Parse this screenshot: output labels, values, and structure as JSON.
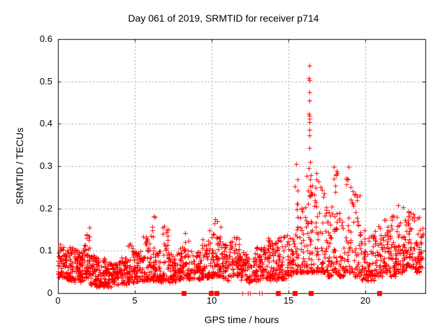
{
  "chart_data": {
    "type": "scatter",
    "title": "Day 061 of 2019, SRMTID for receiver p714",
    "xlabel": "GPS time / hours",
    "ylabel": "SRMTID / TECUs",
    "xlim": [
      0,
      23.9
    ],
    "ylim": [
      0,
      0.6
    ],
    "xticks": [
      0,
      5,
      10,
      15,
      20
    ],
    "xtick_labels": [
      "0",
      "5",
      "10",
      "15",
      "20"
    ],
    "yticks": [
      0,
      0.1,
      0.2,
      0.3,
      0.4,
      0.5,
      0.6
    ],
    "ytick_labels": [
      "0",
      "0.1",
      "0.2",
      "0.3",
      "0.4",
      "0.5",
      "0.6"
    ],
    "grid": true,
    "legend": "none",
    "marker": {
      "shape": "plus",
      "size": 7,
      "color": "#ff0000"
    },
    "colors": {
      "points": "#ff0000",
      "grid": "#9e9e9e",
      "axis": "#000000",
      "background": "#ffffff",
      "text": "#000000"
    },
    "seed": 20190061,
    "series": [
      {
        "name": "srmtid",
        "marker": "plus",
        "band_bins_format": [
          "t_start_hours",
          "t_end_hours",
          "y_min_TECUs",
          "y_max_TECUs",
          "point_count"
        ],
        "band_bins": [
          [
            0.0,
            0.5,
            0.035,
            0.115,
            55
          ],
          [
            0.5,
            1.0,
            0.03,
            0.11,
            55
          ],
          [
            1.0,
            1.5,
            0.025,
            0.105,
            50
          ],
          [
            1.5,
            1.8,
            0.03,
            0.12,
            30
          ],
          [
            1.8,
            2.05,
            0.035,
            0.16,
            35
          ],
          [
            2.05,
            2.5,
            0.02,
            0.09,
            45
          ],
          [
            2.5,
            3.0,
            0.015,
            0.085,
            50
          ],
          [
            3.0,
            3.5,
            0.015,
            0.08,
            50
          ],
          [
            3.5,
            4.0,
            0.02,
            0.075,
            50
          ],
          [
            4.0,
            4.5,
            0.02,
            0.085,
            50
          ],
          [
            4.5,
            5.0,
            0.025,
            0.12,
            50
          ],
          [
            5.0,
            5.5,
            0.025,
            0.1,
            50
          ],
          [
            5.5,
            6.0,
            0.03,
            0.135,
            45
          ],
          [
            6.0,
            6.3,
            0.03,
            0.185,
            30
          ],
          [
            6.3,
            6.8,
            0.025,
            0.1,
            45
          ],
          [
            6.8,
            7.2,
            0.03,
            0.16,
            35
          ],
          [
            7.2,
            7.8,
            0.025,
            0.095,
            50
          ],
          [
            7.8,
            8.2,
            0.03,
            0.11,
            40
          ],
          [
            8.2,
            8.5,
            0.035,
            0.155,
            30
          ],
          [
            8.5,
            9.3,
            0.03,
            0.1,
            60
          ],
          [
            9.3,
            9.8,
            0.035,
            0.13,
            45
          ],
          [
            9.8,
            10.1,
            0.04,
            0.155,
            30
          ],
          [
            10.1,
            10.7,
            0.04,
            0.175,
            55
          ],
          [
            10.7,
            11.2,
            0.03,
            0.12,
            45
          ],
          [
            11.2,
            11.8,
            0.04,
            0.135,
            55
          ],
          [
            11.8,
            12.3,
            0.03,
            0.1,
            45
          ],
          [
            12.3,
            12.9,
            0.025,
            0.095,
            50
          ],
          [
            12.9,
            13.4,
            0.03,
            0.11,
            50
          ],
          [
            13.4,
            13.8,
            0.035,
            0.13,
            45
          ],
          [
            13.8,
            14.3,
            0.03,
            0.12,
            45
          ],
          [
            14.3,
            14.9,
            0.035,
            0.145,
            50
          ],
          [
            14.9,
            15.35,
            0.04,
            0.13,
            45
          ],
          [
            15.35,
            15.75,
            0.05,
            0.31,
            40
          ],
          [
            15.75,
            16.15,
            0.05,
            0.24,
            35
          ],
          [
            16.15,
            16.55,
            0.05,
            0.31,
            45
          ],
          [
            16.55,
            17.0,
            0.05,
            0.285,
            40
          ],
          [
            17.0,
            17.5,
            0.05,
            0.3,
            40
          ],
          [
            17.5,
            17.9,
            0.04,
            0.22,
            35
          ],
          [
            17.9,
            18.25,
            0.05,
            0.31,
            35
          ],
          [
            18.25,
            18.65,
            0.04,
            0.2,
            35
          ],
          [
            18.65,
            19.3,
            0.05,
            0.31,
            45
          ],
          [
            19.3,
            19.7,
            0.04,
            0.24,
            35
          ],
          [
            19.7,
            20.1,
            0.03,
            0.15,
            35
          ],
          [
            20.1,
            20.6,
            0.03,
            0.14,
            45
          ],
          [
            20.6,
            21.1,
            0.04,
            0.16,
            45
          ],
          [
            21.1,
            21.6,
            0.05,
            0.175,
            45
          ],
          [
            21.6,
            22.1,
            0.04,
            0.19,
            48
          ],
          [
            22.1,
            22.6,
            0.05,
            0.215,
            50
          ],
          [
            22.6,
            23.1,
            0.06,
            0.2,
            50
          ],
          [
            23.1,
            23.55,
            0.05,
            0.19,
            42
          ],
          [
            23.55,
            23.78,
            0.06,
            0.155,
            18
          ]
        ],
        "spike_points": [
          [
            16.35,
            0.538
          ],
          [
            16.33,
            0.508
          ],
          [
            16.38,
            0.503
          ],
          [
            16.36,
            0.474
          ],
          [
            16.36,
            0.455
          ],
          [
            16.33,
            0.423
          ],
          [
            16.38,
            0.418
          ],
          [
            16.35,
            0.412
          ],
          [
            16.34,
            0.404
          ],
          [
            16.36,
            0.386
          ],
          [
            16.37,
            0.372
          ],
          [
            16.34,
            0.343
          ],
          [
            16.4,
            0.31
          ],
          [
            16.3,
            0.295
          ],
          [
            16.45,
            0.278
          ],
          [
            16.42,
            0.252
          ]
        ]
      },
      {
        "name": "flagged-epochs-squares",
        "marker": "filled-square",
        "y": 0,
        "x": [
          8.2,
          9.95,
          10.3,
          14.3,
          15.4,
          16.45,
          20.9
        ]
      },
      {
        "name": "zero-value-epochs",
        "marker": "plus",
        "y": 0,
        "x": [
          12.0,
          12.35,
          12.5,
          13.1,
          13.28
        ]
      }
    ]
  }
}
